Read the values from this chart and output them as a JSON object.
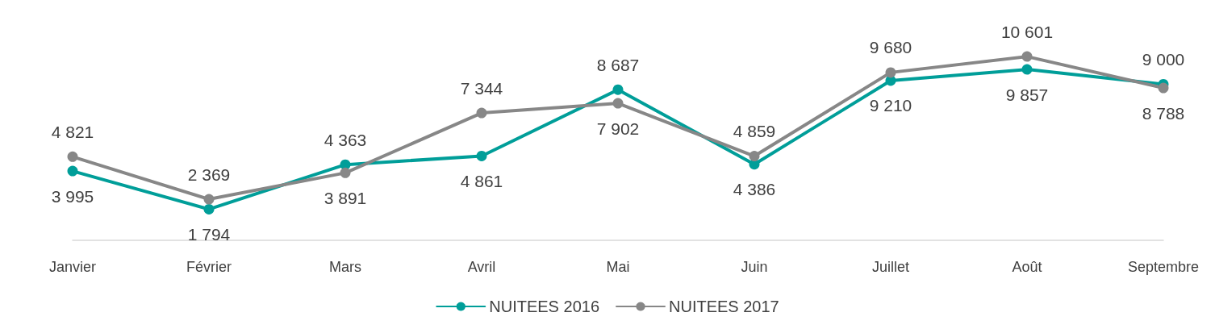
{
  "chart_data": {
    "type": "line",
    "categories": [
      "Janvier",
      "Février",
      "Mars",
      "Avril",
      "Mai",
      "Juin",
      "Juillet",
      "Août",
      "Septembre"
    ],
    "series": [
      {
        "name": "NUITEES 2016",
        "color": "#009e99",
        "values": [
          3995,
          1794,
          4363,
          4861,
          8687,
          4386,
          9210,
          9857,
          9000
        ]
      },
      {
        "name": "NUITEES 2017",
        "color": "#878787",
        "values": [
          4821,
          2369,
          3891,
          7344,
          7902,
          4859,
          9680,
          10601,
          8788
        ]
      }
    ],
    "data_labels": true,
    "legend": "bottom",
    "marker": "circle",
    "line_style": "solid",
    "grid": false,
    "tick_labels": "x"
  }
}
